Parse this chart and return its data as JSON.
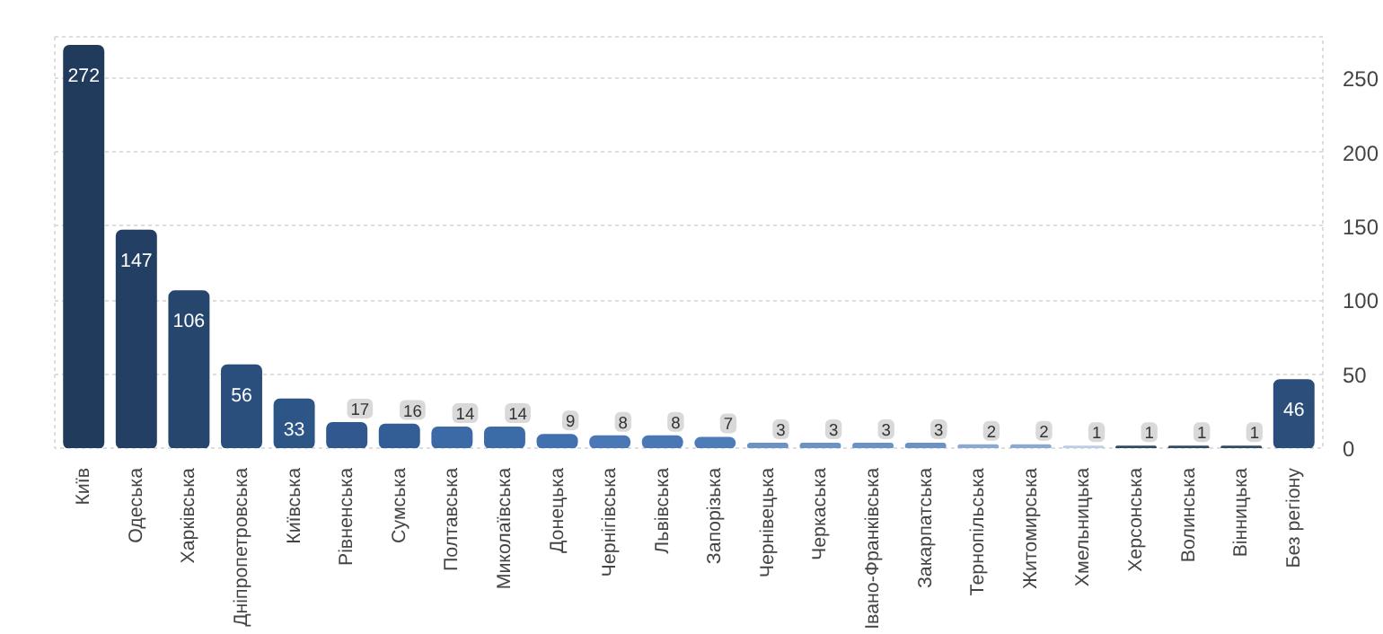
{
  "chart_data": {
    "type": "bar",
    "categories": [
      "Київ",
      "Одеська",
      "Харківська",
      "Дніпропетровська",
      "Київська",
      "Рівненська",
      "Сумська",
      "Полтавська",
      "Миколаївська",
      "Донецька",
      "Чернігівська",
      "Львівська",
      "Запорізька",
      "Чернівецька",
      "Черкаська",
      "Івано-Франківська",
      "Закарпатська",
      "Тернопільська",
      "Житомирська",
      "Хмельницька",
      "Херсонська",
      "Волинська",
      "Вінницька",
      "Без регіону"
    ],
    "values": [
      272,
      147,
      106,
      56,
      33,
      17,
      16,
      14,
      14,
      9,
      8,
      8,
      7,
      3,
      3,
      3,
      3,
      2,
      2,
      1,
      1,
      1,
      1,
      46
    ],
    "colors": [
      "#213b5c",
      "#233f63",
      "#27466d",
      "#2a4f7c",
      "#2d5687",
      "#31598f",
      "#335d95",
      "#3b6aa6",
      "#3c6ca8",
      "#4271b0",
      "#4a78b6",
      "#4a78b6",
      "#4e7cb8",
      "#6a92c6",
      "#6a92c6",
      "#6a92c6",
      "#6a92c6",
      "#8aaad3",
      "#8aaad3",
      "#bccde4",
      "#33495f",
      "#33495f",
      "#33495f",
      "#2b4e7a"
    ],
    "ylim": [
      0,
      278
    ],
    "yticks": [
      0,
      50,
      100,
      150,
      200,
      250
    ],
    "grid": "y",
    "data_labels": true
  }
}
